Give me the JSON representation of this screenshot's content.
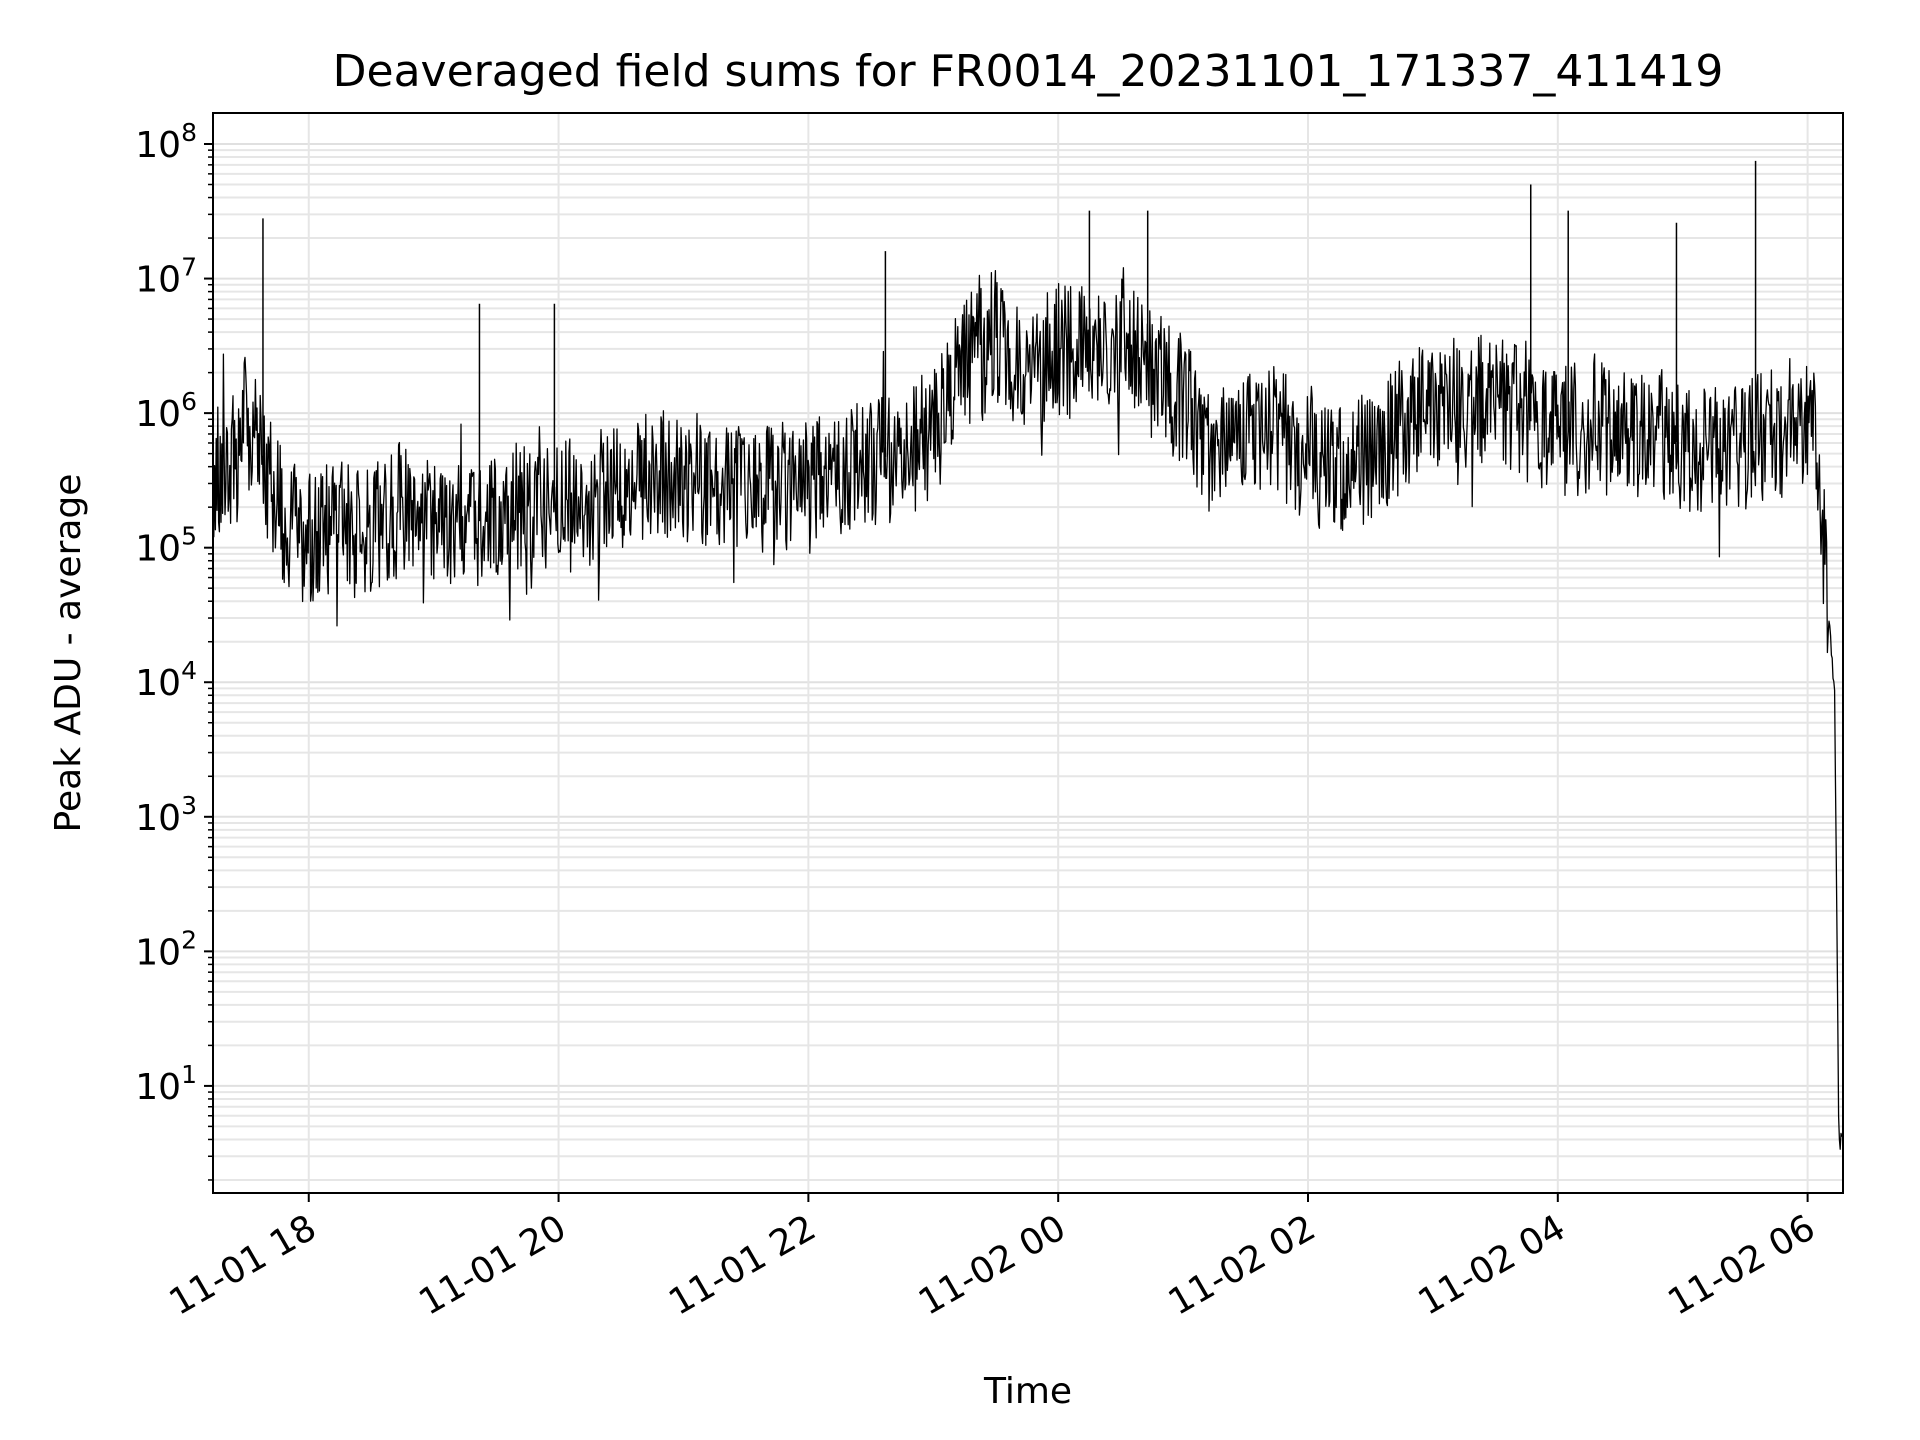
{
  "chart_data": {
    "type": "line",
    "title": "Deaveraged field sums for FR0014_20231101_171337_411419",
    "xlabel": "Time",
    "ylabel": "Peak ADU - average",
    "yscale": "log",
    "grid": true,
    "line_color": "#000000",
    "xlim": [
      "2023-11-01 17:14",
      "2023-11-02 06:17"
    ],
    "ylim": [
      1.6,
      170000000
    ],
    "x_ticks": [
      {
        "value": "2023-11-01 18:00",
        "label": "11-01 18"
      },
      {
        "value": "2023-11-01 20:00",
        "label": "11-01 20"
      },
      {
        "value": "2023-11-01 22:00",
        "label": "11-01 22"
      },
      {
        "value": "2023-11-02 00:00",
        "label": "11-02 00"
      },
      {
        "value": "2023-11-02 02:00",
        "label": "11-02 02"
      },
      {
        "value": "2023-11-02 04:00",
        "label": "11-02 04"
      },
      {
        "value": "2023-11-02 06:00",
        "label": "11-02 06"
      }
    ],
    "y_ticks": [
      {
        "value": 10,
        "base": "10",
        "exp": "1"
      },
      {
        "value": 100,
        "base": "10",
        "exp": "2"
      },
      {
        "value": 1000,
        "base": "10",
        "exp": "3"
      },
      {
        "value": 10000,
        "base": "10",
        "exp": "4"
      },
      {
        "value": 100000,
        "base": "10",
        "exp": "5"
      },
      {
        "value": 1000000,
        "base": "10",
        "exp": "6"
      },
      {
        "value": 10000000,
        "base": "10",
        "exp": "7"
      },
      {
        "value": 100000000,
        "base": "10",
        "exp": "8"
      }
    ],
    "series": [
      {
        "x": [
          "2023-11-01 17:14",
          "2023-11-01 17:20",
          "2023-11-01 17:26",
          "2023-11-01 17:30",
          "2023-11-01 17:35",
          "2023-11-01 17:40",
          "2023-11-01 17:45",
          "2023-11-01 17:50",
          "2023-11-01 17:55",
          "2023-11-01 18:00",
          "2023-11-01 18:15",
          "2023-11-01 18:30",
          "2023-11-01 18:45",
          "2023-11-01 19:00",
          "2023-11-01 19:15",
          "2023-11-01 19:30",
          "2023-11-01 19:45",
          "2023-11-01 20:00",
          "2023-11-01 20:15",
          "2023-11-01 20:30",
          "2023-11-01 20:45",
          "2023-11-01 21:00",
          "2023-11-01 21:15",
          "2023-11-01 21:30",
          "2023-11-01 21:45",
          "2023-11-01 22:00",
          "2023-11-01 22:15",
          "2023-11-01 22:30",
          "2023-11-01 22:45",
          "2023-11-01 23:00",
          "2023-11-01 23:15",
          "2023-11-01 23:30",
          "2023-11-01 23:45",
          "2023-11-02 00:00",
          "2023-11-02 00:15",
          "2023-11-02 00:30",
          "2023-11-02 00:45",
          "2023-11-02 01:00",
          "2023-11-02 01:15",
          "2023-11-02 01:30",
          "2023-11-02 01:45",
          "2023-11-02 02:00",
          "2023-11-02 02:15",
          "2023-11-02 02:30",
          "2023-11-02 02:45",
          "2023-11-02 03:00",
          "2023-11-02 03:15",
          "2023-11-02 03:30",
          "2023-11-02 03:45",
          "2023-11-02 04:00",
          "2023-11-02 04:15",
          "2023-11-02 04:30",
          "2023-11-02 04:45",
          "2023-11-02 05:00",
          "2023-11-02 05:15",
          "2023-11-02 05:30",
          "2023-11-02 05:45",
          "2023-11-02 06:00",
          "2023-11-02 06:05",
          "2023-11-02 06:10",
          "2023-11-02 06:13",
          "2023-11-02 06:15",
          "2023-11-02 06:17"
        ],
        "values": [
          350000,
          400000,
          500000,
          900000,
          700000,
          350000,
          200000,
          150000,
          130000,
          120000,
          150000,
          130000,
          200000,
          150000,
          140000,
          180000,
          220000,
          200000,
          220000,
          300000,
          320000,
          350000,
          300000,
          250000,
          300000,
          280000,
          350000,
          450000,
          500000,
          700000,
          2500000,
          3000000,
          2000000,
          3000000,
          2500000,
          3500000,
          2000000,
          1200000,
          500000,
          700000,
          800000,
          450000,
          350000,
          500000,
          800000,
          1200000,
          1100000,
          1300000,
          900000,
          700000,
          800000,
          700000,
          650000,
          600000,
          550000,
          600000,
          700000,
          1000000,
          400000,
          30000,
          8000,
          4,
          4
        ]
      }
    ],
    "spikes": [
      {
        "x": "2023-11-01 17:38",
        "y": 28000000
      },
      {
        "x": "2023-11-01 19:22",
        "y": 6500000
      },
      {
        "x": "2023-11-01 19:58",
        "y": 6500000
      },
      {
        "x": "2023-11-01 22:37",
        "y": 16000000
      },
      {
        "x": "2023-11-02 00:15",
        "y": 32000000
      },
      {
        "x": "2023-11-02 00:43",
        "y": 32000000
      },
      {
        "x": "2023-11-02 03:47",
        "y": 50000000
      },
      {
        "x": "2023-11-02 04:05",
        "y": 32000000
      },
      {
        "x": "2023-11-02 04:57",
        "y": 26000000
      },
      {
        "x": "2023-11-02 05:35",
        "y": 75000000
      }
    ]
  }
}
